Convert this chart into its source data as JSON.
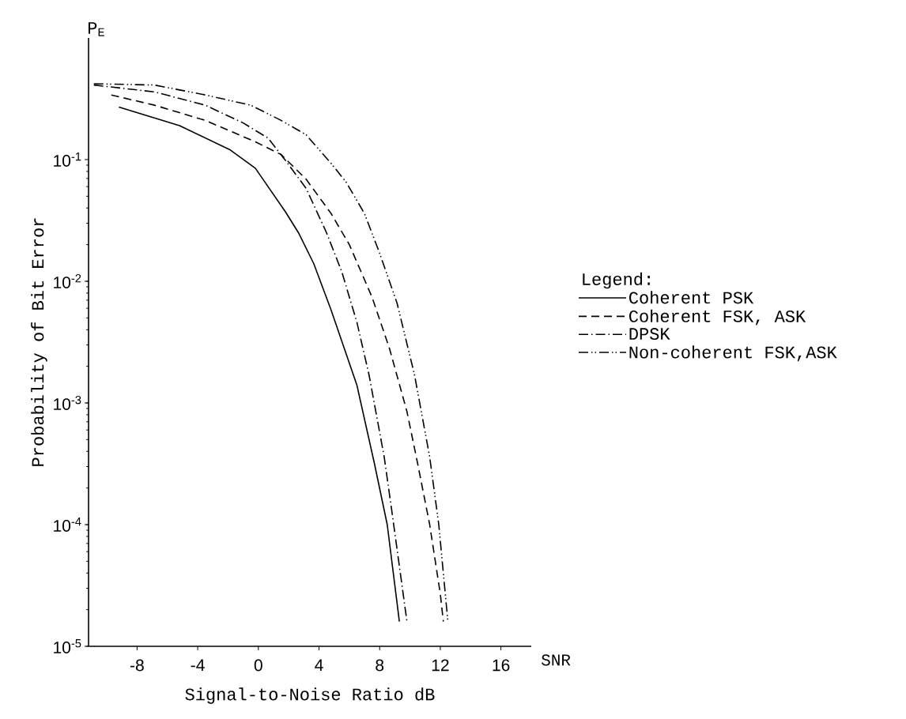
{
  "chart_data": {
    "type": "line",
    "xlabel": "Signal-to-Noise Ratio dB",
    "ylabel": "Probability of Bit Error",
    "legend_title": "Legend:",
    "annotations": [
      "P$_{E}$",
      "SNR"
    ],
    "log": "y",
    "grid": false,
    "legend": "right",
    "marker": "none",
    "xlim": [
      -11.2,
      18
    ],
    "ylim": [
      1e-05,
      1
    ],
    "xticks": [
      -8,
      -4,
      0,
      4,
      8,
      12,
      16
    ],
    "yticks": [
      {
        "value": 1e-05,
        "label": "10$^{-5}$"
      },
      {
        "value": 0.0001,
        "label": "10$^{-4}$"
      },
      {
        "value": 0.001,
        "label": "10$^{-3}$"
      },
      {
        "value": 0.01,
        "label": "10$^{-2}$"
      },
      {
        "value": 0.1,
        "label": "10$^{-1}$"
      }
    ],
    "series": [
      {
        "name": "Coherent PSK",
        "color": "#000000",
        "line_style": "solid",
        "x": [
          -9.2,
          -5.2,
          -1.85,
          -0.2,
          1.8,
          2.65,
          3.65,
          4.8,
          6.5,
          7.65,
          8.5,
          9.3
        ],
        "values": [
          0.27,
          0.19,
          0.12,
          0.085,
          0.037,
          0.025,
          0.014,
          0.0058,
          0.0014,
          0.00032,
          0.0001,
          1.6e-05
        ]
      },
      {
        "name": "Coherent FSK, ASK",
        "color": "#000000",
        "line_style": "dashed",
        "x": [
          -9.7,
          -6.85,
          -3.5,
          -0.2,
          1.5,
          3.15,
          4.8,
          6.0,
          7.5,
          8.65,
          9.8,
          10.5,
          11.3,
          12.0,
          12.2
        ],
        "values": [
          0.34,
          0.28,
          0.21,
          0.14,
          0.11,
          0.069,
          0.036,
          0.02,
          0.0074,
          0.0028,
          0.00085,
          0.00032,
          0.0001,
          2.7e-05,
          1.6e-05
        ]
      },
      {
        "name": "DPSK",
        "color": "#000000",
        "line_style": "dashdotted",
        "x": [
          -10.85,
          -6.85,
          -3.5,
          -1.0,
          0.65,
          1.8,
          3.15,
          4.5,
          5.5,
          6.5,
          7.3,
          8.3,
          8.8,
          9.8
        ],
        "values": [
          0.41,
          0.36,
          0.28,
          0.2,
          0.15,
          0.098,
          0.058,
          0.025,
          0.012,
          0.0046,
          0.0017,
          0.00036,
          0.00013,
          1.6e-05
        ]
      },
      {
        "name": "Non-coherent FSK,ASK",
        "color": "#000000",
        "line_style": "dashdotdotted",
        "x": [
          -10.85,
          -6.85,
          -3.5,
          -0.5,
          1.5,
          3.15,
          4.8,
          5.8,
          7.0,
          8.0,
          9.15,
          10.3,
          11.3,
          11.9,
          12.5
        ],
        "values": [
          0.42,
          0.41,
          0.34,
          0.28,
          0.21,
          0.16,
          0.093,
          0.065,
          0.036,
          0.017,
          0.0066,
          0.0017,
          0.00036,
          0.0001,
          1.6e-05
        ]
      }
    ]
  }
}
